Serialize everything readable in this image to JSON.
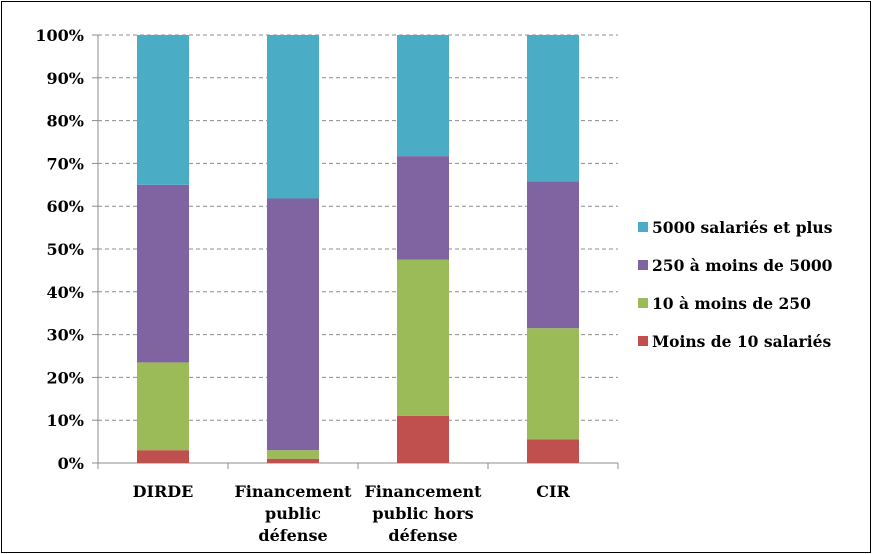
{
  "chart_data": {
    "type": "bar",
    "stacked": true,
    "percent": true,
    "title": "",
    "xlabel": "",
    "ylabel": "",
    "ylim": [
      0,
      100
    ],
    "yticks": [
      "0%",
      "10%",
      "20%",
      "30%",
      "40%",
      "50%",
      "60%",
      "70%",
      "80%",
      "90%",
      "100%"
    ],
    "grid": "horizontal dashed",
    "legend_position": "right",
    "categories": [
      [
        "DIRDE"
      ],
      [
        "Financement",
        "public",
        "défense"
      ],
      [
        "Financement",
        "public hors",
        "défense"
      ],
      [
        "CIR"
      ]
    ],
    "series": [
      {
        "name": "Moins de 10 salariés",
        "color": "#c0504d",
        "values": [
          3.0,
          1.0,
          11.0,
          5.5
        ]
      },
      {
        "name": "10 à moins de 250",
        "color": "#9bbb59",
        "values": [
          20.5,
          2.0,
          36.5,
          26.0
        ]
      },
      {
        "name": "250 à moins de 5000",
        "color": "#8064a2",
        "values": [
          41.5,
          58.8,
          24.2,
          34.3
        ]
      },
      {
        "name": "5000 salariés et plus",
        "color": "#4bacc6",
        "values": [
          35.0,
          38.2,
          28.3,
          34.2
        ]
      }
    ],
    "legend_order": [
      3,
      2,
      1,
      0
    ]
  }
}
